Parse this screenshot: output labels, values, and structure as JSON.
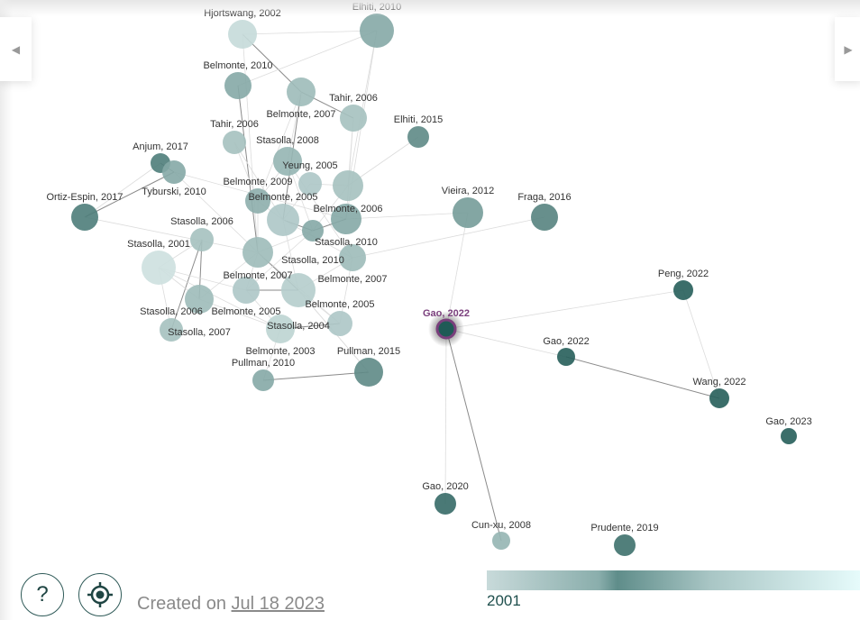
{
  "graph": {
    "nodes": [
      {
        "label": "Hjortswang, 2002",
        "year": 2002
      },
      {
        "label": "Elhiti, 2010",
        "year": 2010
      },
      {
        "label": "Belmonte, 2010",
        "year": 2010
      },
      {
        "label": "Belmonte, 2007",
        "year": 2007
      },
      {
        "label": "Tahir, 2006",
        "year": 2006
      },
      {
        "label": "Tahir, 2006",
        "year": 2006
      },
      {
        "label": "Elhiti, 2015",
        "year": 2015
      },
      {
        "label": "Stasolla, 2008",
        "year": 2008
      },
      {
        "label": "Anjum, 2017",
        "year": 2017
      },
      {
        "label": "Tyburski, 2010",
        "year": 2010
      },
      {
        "label": "Yeung, 2005",
        "year": 2005
      },
      {
        "label": "Belmonte, 2006",
        "year": 2006
      },
      {
        "label": "Belmonte, 2009",
        "year": 2009
      },
      {
        "label": "Ortiz-Espin, 2017",
        "year": 2017
      },
      {
        "label": "Belmonte, 2005",
        "year": 2005
      },
      {
        "label": "Stasolla, 2010",
        "year": 2010
      },
      {
        "label": "Stasolla, 2010",
        "year": 2010
      },
      {
        "label": "Vieira, 2012",
        "year": 2012
      },
      {
        "label": "Fraga, 2016",
        "year": 2016
      },
      {
        "label": "Stasolla, 2006",
        "year": 2006
      },
      {
        "label": "Belmonte, 2007",
        "year": 2007
      },
      {
        "label": "Belmonte, 2007",
        "year": 2007
      },
      {
        "label": "Stasolla, 2001",
        "year": 2001
      },
      {
        "label": "Belmonte, 2005",
        "year": 2005
      },
      {
        "label": "Stasolla, 2004",
        "year": 2004
      },
      {
        "label": "Stasolla, 2007",
        "year": 2007
      },
      {
        "label": "Peng, 2022",
        "year": 2022
      },
      {
        "label": "Stasolla, 2006",
        "year": 2006
      },
      {
        "label": "Belmonte, 2003",
        "year": 2003
      },
      {
        "label": "Belmonte, 2005",
        "year": 2005
      },
      {
        "label": "Gao, 2022",
        "year": 2022,
        "selected": true
      },
      {
        "label": "Gao, 2022",
        "year": 2022
      },
      {
        "label": "Pullman, 2010",
        "year": 2010
      },
      {
        "label": "Pullman, 2015",
        "year": 2015
      },
      {
        "label": "Wang, 2022",
        "year": 2022
      },
      {
        "label": "Gao, 2023",
        "year": 2023
      },
      {
        "label": "Gao, 2020",
        "year": 2020
      },
      {
        "label": "Cun-xu, 2008",
        "year": 2008
      },
      {
        "label": "Prudente, 2019",
        "year": 2019
      }
    ],
    "selected_color": "#7a3f7c",
    "selected_fill": "#1f5a56"
  },
  "nav": {
    "prev_icon": "triangle-left-icon",
    "next_icon": "triangle-right-icon",
    "prev_glyph": "◀",
    "next_glyph": "▶"
  },
  "footer": {
    "help_label": "?",
    "recenter_icon": "crosshair-icon",
    "created_prefix": "Created on",
    "created_date": "Jul 18 2023"
  },
  "legend": {
    "start_year": "2001",
    "colors": [
      "#c8dada",
      "#5f8d8a",
      "#e6fbfb"
    ]
  }
}
